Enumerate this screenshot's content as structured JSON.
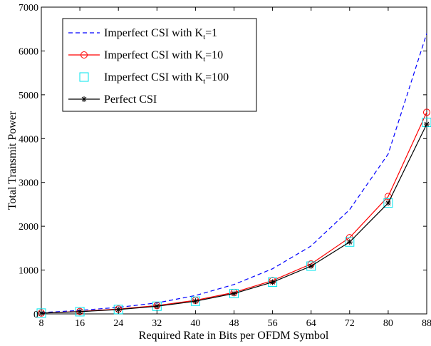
{
  "chart_data": {
    "type": "line",
    "xlabel": "Required Rate in Bits per OFDM Symbol",
    "ylabel": "Total Transmit Power",
    "x": [
      8,
      16,
      24,
      32,
      40,
      48,
      56,
      64,
      72,
      80,
      88
    ],
    "xticks": [
      "8",
      "16",
      "24",
      "32",
      "40",
      "48",
      "56",
      "64",
      "72",
      "80",
      "88"
    ],
    "yticks": [
      "0",
      "1000",
      "2000",
      "3000",
      "4000",
      "5000",
      "6000",
      "7000"
    ],
    "xlim": [
      8,
      88
    ],
    "ylim": [
      0,
      7000
    ],
    "grid": false,
    "legend_position": "top-left",
    "series": [
      {
        "name": "Imperfect CSI with K",
        "subscript": "t",
        "suffix": "=1",
        "color": "#0000ff",
        "line_style": "dashed",
        "marker": "none",
        "values": [
          30,
          80,
          150,
          250,
          420,
          670,
          1030,
          1550,
          2380,
          3650,
          6400
        ]
      },
      {
        "name": "Imperfect CSI with K",
        "subscript": "t",
        "suffix": "=10",
        "color": "#ff0000",
        "line_style": "solid",
        "marker": "circle",
        "values": [
          20,
          55,
          110,
          190,
          310,
          490,
          760,
          1140,
          1740,
          2680,
          4600
        ]
      },
      {
        "name": "Imperfect CSI with K",
        "subscript": "t",
        "suffix": "=100",
        "color": "#00e5ee",
        "line_style": "none",
        "marker": "square",
        "values": [
          18,
          50,
          100,
          175,
          290,
          465,
          725,
          1090,
          1640,
          2530,
          4370
        ]
      },
      {
        "name": "Perfect CSI",
        "subscript": "",
        "suffix": "",
        "color": "#000000",
        "line_style": "solid",
        "marker": "star",
        "values": [
          18,
          50,
          100,
          175,
          290,
          465,
          725,
          1090,
          1640,
          2530,
          4330
        ]
      }
    ]
  }
}
